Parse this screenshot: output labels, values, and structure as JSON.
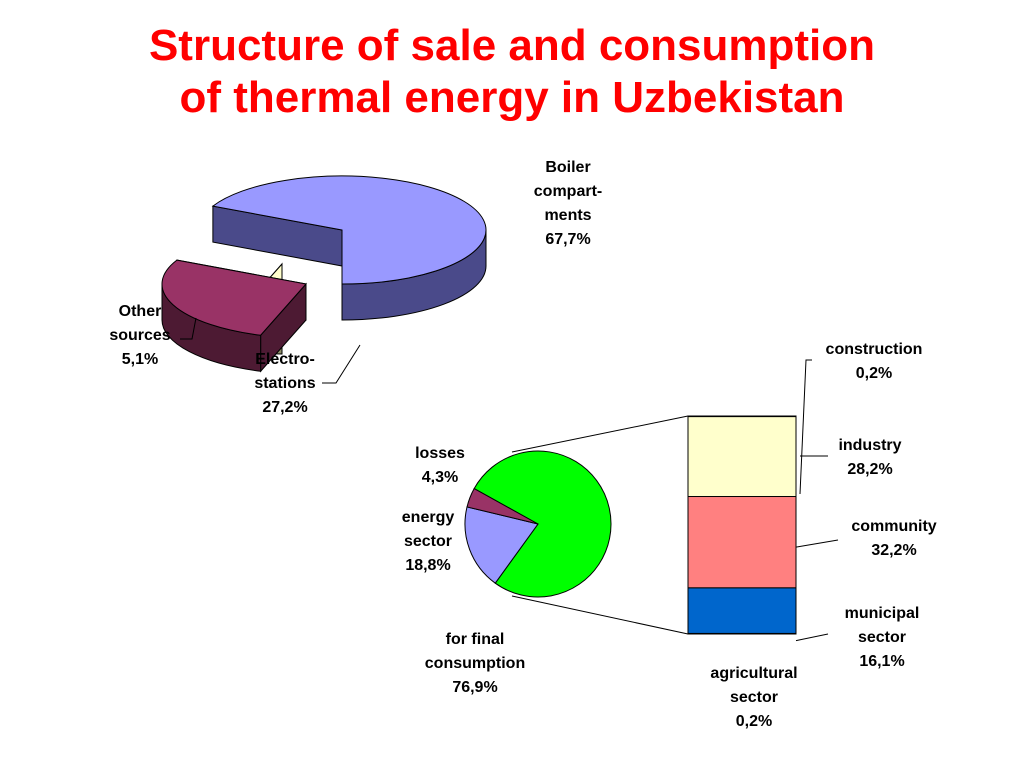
{
  "title": {
    "line1": "Structure of sale and consumption",
    "line2": "of thermal energy in Uzbekistan"
  },
  "colors": {
    "title": "#ff0000",
    "boiler": "#9999ff",
    "boiler_side": "#4a4a8a",
    "electro": "#993366",
    "electro_side": "#4d1a33",
    "other": "#ffffcc",
    "other_side": "#8c8c66",
    "final": "#00ff00",
    "energy_sector": "#9999ff",
    "losses": "#993366",
    "construction": "#ffffff",
    "industry": "#ffffcc",
    "community": "#ff8080",
    "municipal": "#0066cc",
    "agricultural": "#ffffff"
  },
  "chart_data": [
    {
      "type": "pie",
      "style": "3d",
      "categories": [
        "Boiler compartments",
        "Electro-stations",
        "Other sources"
      ],
      "values": [
        67.7,
        27.2,
        5.1
      ],
      "unit": "%",
      "labels": [
        [
          "Boiler",
          "compart-",
          "ments",
          "67,7%"
        ],
        [
          "Electro-",
          "stations",
          "27,2%"
        ],
        [
          "Other",
          "sources",
          "5,1%"
        ]
      ]
    },
    {
      "type": "pie",
      "categories": [
        "for final consumption",
        "energy sector",
        "losses"
      ],
      "values": [
        76.9,
        18.8,
        4.3
      ],
      "unit": "%",
      "labels": [
        [
          "for final",
          "consumption",
          "76,9%"
        ],
        [
          "energy",
          "sector",
          "18,8%"
        ],
        [
          "losses",
          "4,3%"
        ]
      ]
    },
    {
      "type": "bar",
      "style": "stacked-100",
      "categories": [
        "agricultural sector",
        "municipal sector",
        "community",
        "industry",
        "construction"
      ],
      "values": [
        0.2,
        16.1,
        32.2,
        28.2,
        0.2
      ],
      "unit": "%",
      "labels": [
        [
          "agricultural",
          "sector",
          "0,2%"
        ],
        [
          "municipal",
          "sector",
          "16,1%"
        ],
        [
          "community",
          "32,2%"
        ],
        [
          "industry",
          "28,2%"
        ],
        [
          "construction",
          "0,2%"
        ]
      ]
    }
  ]
}
